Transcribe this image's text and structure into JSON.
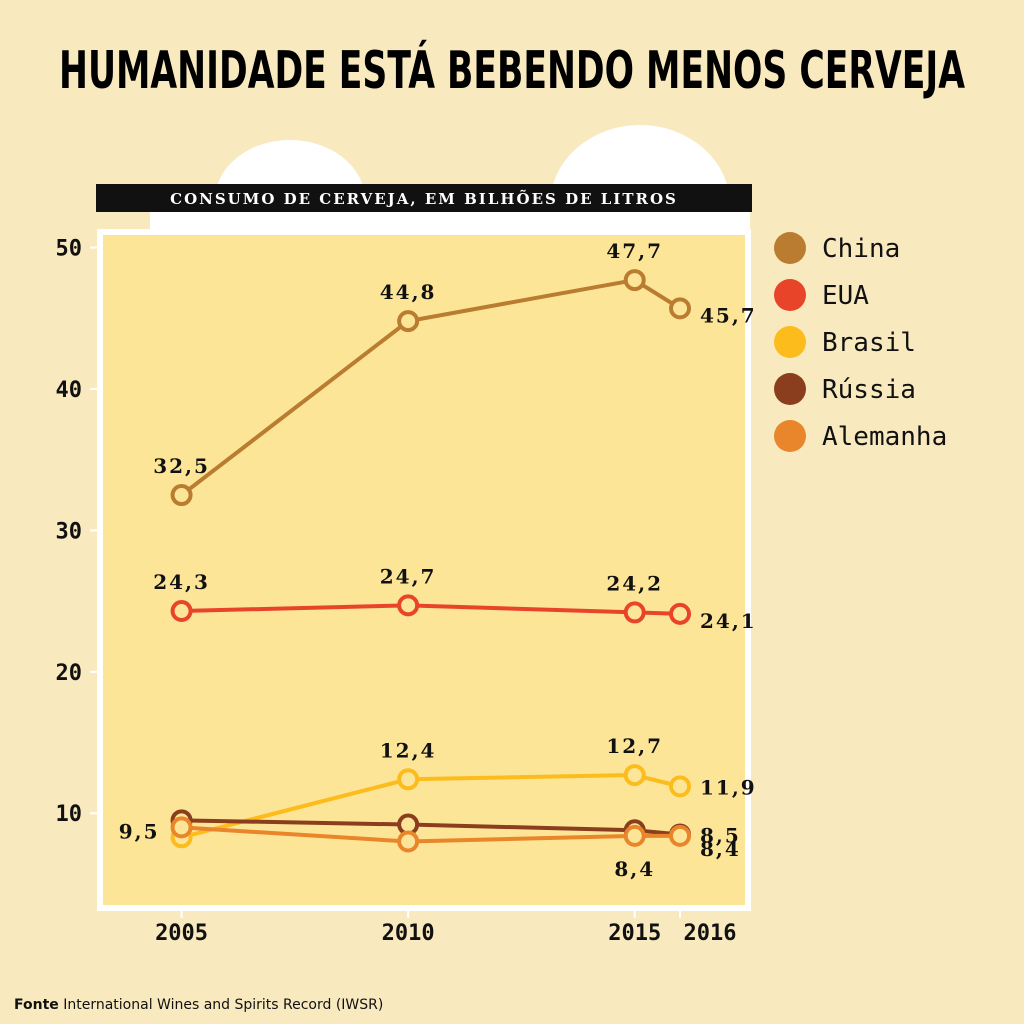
{
  "chart_data": {
    "type": "line",
    "title": "HUMANIDADE ESTÁ BEBENDO MENOS CERVEJA",
    "subtitle": "CONSUMO DE CERVEJA, EM BILHÕES DE LITROS",
    "x": [
      2005,
      2010,
      2015,
      2016
    ],
    "xlim": [
      2003.2,
      2017.5
    ],
    "xticks": [
      2005,
      2010,
      2015,
      2016
    ],
    "ylim": [
      3.3,
      51.1
    ],
    "yticks": [
      10,
      20,
      30,
      40,
      50
    ],
    "series": [
      {
        "name": "China",
        "color": "#b97c31",
        "values": [
          32.5,
          44.8,
          47.7,
          45.7
        ],
        "value_labels": [
          "32,5",
          "44,8",
          "47,7",
          "45,7"
        ]
      },
      {
        "name": "EUA",
        "color": "#e8442a",
        "values": [
          24.3,
          24.7,
          24.2,
          24.1
        ],
        "value_labels": [
          "24,3",
          "24,7",
          "24,2",
          "24,1"
        ]
      },
      {
        "name": "Brasil",
        "color": "#fcbc1c",
        "values": [
          8.3,
          12.4,
          12.7,
          11.9
        ],
        "value_labels": [
          null,
          "12,4",
          "12,7",
          "11,9"
        ]
      },
      {
        "name": "Rússia",
        "color": "#8b3e1d",
        "values": [
          9.5,
          9.2,
          8.8,
          8.5
        ],
        "value_labels": [
          "9,5",
          null,
          null,
          "8,5"
        ]
      },
      {
        "name": "Alemanha",
        "color": "#e9852a",
        "values": [
          9.0,
          8.0,
          8.4,
          8.4
        ],
        "value_labels": [
          null,
          null,
          "8,4",
          "8,4"
        ]
      }
    ],
    "source_label": "Fonte",
    "source": "International Wines and Spirits Record (IWSR)"
  }
}
